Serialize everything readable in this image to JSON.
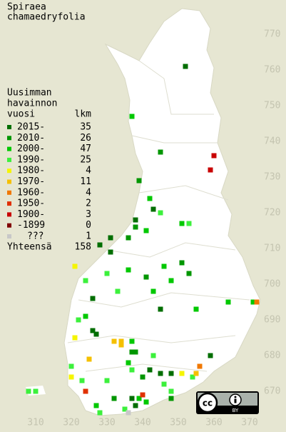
{
  "title": [
    "Spiraea",
    "chamaedryfolia"
  ],
  "legend": {
    "header": [
      "Uusimman",
      "havainnon",
      "vuosi"
    ],
    "count_header": "lkm",
    "rows": [
      {
        "label": "2015-",
        "count": 35,
        "color": "#006e00"
      },
      {
        "label": "2010-",
        "count": 26,
        "color": "#009600"
      },
      {
        "label": "2000-",
        "count": 47,
        "color": "#00c800"
      },
      {
        "label": "1990-",
        "count": 25,
        "color": "#3cf03c"
      },
      {
        "label": "1980-",
        "count": 4,
        "color": "#f5f500"
      },
      {
        "label": "1970-",
        "count": 11,
        "color": "#f5c000"
      },
      {
        "label": "1960-",
        "count": 4,
        "color": "#f07800"
      },
      {
        "label": "1950-",
        "count": 2,
        "color": "#e03000"
      },
      {
        "label": "1900-",
        "count": 3,
        "color": "#c80000"
      },
      {
        "label": "-1899",
        "count": 0,
        "color": "#800000"
      },
      {
        "label": "???",
        "count": 1,
        "color": "#c8c8c8"
      }
    ],
    "total": {
      "label": "Yhteensä",
      "value": 158
    }
  },
  "xlim": [
    300,
    380
  ],
  "ylim": [
    660,
    778
  ],
  "xticks": [
    310,
    320,
    330,
    340,
    350,
    360,
    370
  ],
  "yticks": [
    670,
    680,
    690,
    700,
    710,
    720,
    730,
    740,
    750,
    760,
    770
  ],
  "observations": [
    [
      352,
      761,
      0
    ],
    [
      337,
      747,
      2
    ],
    [
      345,
      737,
      1
    ],
    [
      360,
      736,
      8
    ],
    [
      359,
      732,
      8
    ],
    [
      339,
      729,
      1
    ],
    [
      342,
      724,
      2
    ],
    [
      343,
      721,
      2
    ],
    [
      345,
      720,
      3
    ],
    [
      343,
      721,
      0
    ],
    [
      338,
      718,
      0
    ],
    [
      338,
      716,
      1
    ],
    [
      336,
      713,
      1
    ],
    [
      341,
      715,
      2
    ],
    [
      351,
      717,
      2
    ],
    [
      353,
      717,
      3
    ],
    [
      331,
      713,
      0
    ],
    [
      328,
      711,
      0
    ],
    [
      331,
      709,
      0
    ],
    [
      330,
      703,
      3
    ],
    [
      336,
      704,
      2
    ],
    [
      351,
      706,
      1
    ],
    [
      353,
      703,
      1
    ],
    [
      346,
      705,
      2
    ],
    [
      321,
      705,
      4
    ],
    [
      324,
      701,
      3
    ],
    [
      341,
      702,
      1
    ],
    [
      343,
      698,
      2
    ],
    [
      348,
      701,
      2
    ],
    [
      333,
      698,
      3
    ],
    [
      326,
      696,
      0
    ],
    [
      345,
      693,
      0
    ],
    [
      355,
      693,
      2
    ],
    [
      364,
      695,
      2
    ],
    [
      371,
      695,
      2
    ],
    [
      372,
      695,
      6
    ],
    [
      322,
      690,
      3
    ],
    [
      324,
      691,
      2
    ],
    [
      326,
      687,
      0
    ],
    [
      327,
      686,
      0
    ],
    [
      321,
      685,
      4
    ],
    [
      334,
      684,
      5
    ],
    [
      334,
      683,
      5
    ],
    [
      332,
      684,
      5
    ],
    [
      337,
      684,
      2
    ],
    [
      337,
      681,
      1
    ],
    [
      338,
      681,
      1
    ],
    [
      336,
      678,
      2
    ],
    [
      337,
      676,
      3
    ],
    [
      343,
      680,
      3
    ],
    [
      340,
      674,
      1
    ],
    [
      342,
      676,
      0
    ],
    [
      345,
      675,
      0
    ],
    [
      348,
      675,
      0
    ],
    [
      359,
      680,
      0
    ],
    [
      356,
      677,
      6
    ],
    [
      351,
      675,
      4
    ],
    [
      354,
      674,
      3
    ],
    [
      355,
      675,
      5
    ],
    [
      320,
      674,
      4
    ],
    [
      323,
      673,
      3
    ],
    [
      324,
      670,
      7
    ],
    [
      330,
      673,
      3
    ],
    [
      325,
      679,
      5
    ],
    [
      320,
      677,
      3
    ],
    [
      332,
      668,
      1
    ],
    [
      337,
      668,
      0
    ],
    [
      338,
      666,
      0
    ],
    [
      335,
      665,
      3
    ],
    [
      339,
      668,
      2
    ],
    [
      336,
      664,
      10
    ],
    [
      341,
      667,
      2
    ],
    [
      340,
      669,
      7
    ],
    [
      328,
      664,
      3
    ],
    [
      327,
      666,
      2
    ],
    [
      346,
      672,
      3
    ],
    [
      348,
      668,
      1
    ],
    [
      348,
      670,
      3
    ],
    [
      308,
      670,
      3
    ],
    [
      310,
      670,
      3
    ]
  ],
  "license": {
    "logo": "cc",
    "badge": "BY"
  }
}
